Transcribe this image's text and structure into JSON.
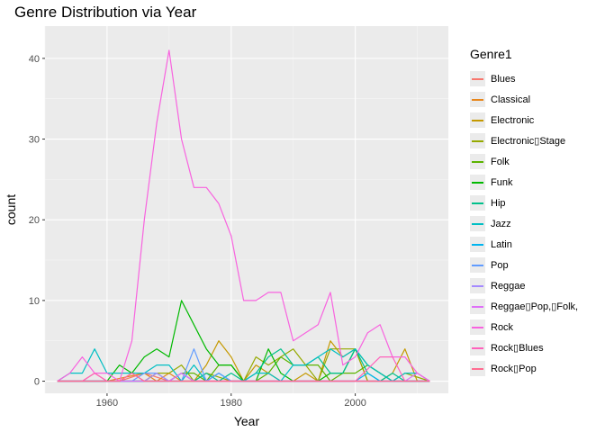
{
  "chart_data": {
    "type": "line",
    "title": "Genre Distribution via Year",
    "xlabel": "Year",
    "ylabel": "count",
    "xlim": [
      1950,
      2015
    ],
    "ylim": [
      -1.5,
      44
    ],
    "xticks": [
      1960,
      1980,
      2000
    ],
    "yticks": [
      0,
      10,
      20,
      30,
      40
    ],
    "grid": true,
    "legend_title": "Genre1",
    "legend_position": "right",
    "series": [
      {
        "name": "Blues",
        "color": "#F8766D",
        "x": [
          1952,
          1956,
          1958,
          1960,
          1962,
          1966,
          1970,
          1974,
          1980,
          1990,
          2000,
          2012
        ],
        "y": [
          0,
          0,
          1,
          0,
          0,
          1,
          0,
          0,
          0,
          0,
          0,
          0
        ]
      },
      {
        "name": "Classical",
        "color": "#E7861B",
        "x": [
          1952,
          1960,
          1966,
          1968,
          1970,
          1972,
          1980,
          1990,
          2000,
          2012
        ],
        "y": [
          0,
          0,
          1,
          0,
          1,
          0,
          0,
          0,
          0,
          0
        ]
      },
      {
        "name": "Electronic",
        "color": "#C59900",
        "x": [
          1952,
          1966,
          1968,
          1970,
          1972,
          1974,
          1976,
          1978,
          1980,
          1982,
          1984,
          1986,
          1988,
          1990,
          1992,
          1994,
          1996,
          1998,
          2000,
          2002,
          2004,
          2006,
          2008,
          2010,
          2012
        ],
        "y": [
          0,
          0,
          1,
          0,
          1,
          0,
          2,
          5,
          3,
          0,
          2,
          1,
          0,
          0,
          1,
          0,
          5,
          3,
          4,
          0,
          0,
          1,
          4,
          0,
          0
        ]
      },
      {
        "name": "Electronic▯Stage",
        "color": "#95A900",
        "x": [
          1952,
          1966,
          1968,
          1970,
          1972,
          1974,
          1976,
          1980,
          1982,
          1984,
          1986,
          1988,
          1990,
          1992,
          1994,
          1996,
          1998,
          2000,
          2002,
          2004,
          2006,
          2008,
          2012
        ],
        "y": [
          0,
          0,
          1,
          1,
          2,
          0,
          1,
          0,
          0,
          3,
          2,
          3,
          4,
          2,
          0,
          4,
          4,
          4,
          0,
          0,
          0,
          1,
          0
        ]
      },
      {
        "name": "Folk",
        "color": "#5BB300",
        "x": [
          1952,
          1970,
          1972,
          1974,
          1976,
          1978,
          1980,
          1982,
          1984,
          1986,
          1988,
          1990,
          1992,
          1994,
          1996,
          1998,
          2000,
          2002,
          2004,
          2006,
          2008,
          2012
        ],
        "y": [
          0,
          0,
          1,
          1,
          0,
          2,
          2,
          0,
          0,
          1,
          3,
          2,
          2,
          2,
          0,
          1,
          1,
          2,
          1,
          0,
          0,
          0
        ]
      },
      {
        "name": "Funk",
        "color": "#00B900",
        "x": [
          1952,
          1960,
          1962,
          1964,
          1966,
          1968,
          1970,
          1972,
          1974,
          1976,
          1978,
          1980,
          1982,
          1984,
          1986,
          1988,
          1990,
          1992,
          1994,
          1996,
          1998,
          2000,
          2002,
          2004,
          2006,
          2008,
          2012
        ],
        "y": [
          0,
          0,
          2,
          1,
          3,
          4,
          3,
          10,
          7,
          4,
          2,
          2,
          0,
          0,
          4,
          1,
          0,
          0,
          0,
          1,
          1,
          4,
          2,
          1,
          0,
          0,
          0
        ]
      },
      {
        "name": "Hip",
        "color": "#00C08B",
        "x": [
          1952,
          1970,
          1974,
          1976,
          1978,
          1980,
          1982,
          1984,
          1986,
          1988,
          1990,
          1992,
          1994,
          1996,
          1998,
          2000,
          2002,
          2004,
          2006,
          2008,
          2010,
          2012
        ],
        "y": [
          0,
          0,
          0,
          1,
          0,
          1,
          0,
          1,
          3,
          4,
          2,
          2,
          3,
          1,
          1,
          4,
          1,
          0,
          1,
          0,
          0,
          0
        ]
      },
      {
        "name": "Jazz",
        "color": "#00BFC4",
        "x": [
          1952,
          1954,
          1956,
          1958,
          1960,
          1962,
          1964,
          1966,
          1968,
          1970,
          1972,
          1974,
          1976,
          1978,
          1980,
          1982,
          1984,
          1986,
          1988,
          1990,
          1992,
          1994,
          1996,
          1998,
          2000,
          2002,
          2004,
          2006,
          2008,
          2010,
          2012
        ],
        "y": [
          0,
          1,
          1,
          4,
          1,
          1,
          1,
          1,
          2,
          2,
          0,
          2,
          0,
          1,
          0,
          0,
          1,
          1,
          0,
          2,
          2,
          3,
          4,
          3,
          4,
          2,
          1,
          0,
          1,
          1,
          0
        ]
      },
      {
        "name": "Latin",
        "color": "#00B4EF",
        "x": [
          1952,
          1970,
          1972,
          1974,
          1976,
          1978,
          1980,
          2000,
          2002,
          2004,
          2012
        ],
        "y": [
          0,
          0,
          1,
          0,
          0,
          1,
          0,
          0,
          1,
          0,
          0
        ]
      },
      {
        "name": "Pop",
        "color": "#619CFF",
        "x": [
          1952,
          1964,
          1966,
          1968,
          1970,
          1972,
          1974,
          1976,
          1978,
          1980,
          1990,
          2000,
          2012
        ],
        "y": [
          0,
          0,
          1,
          1,
          0,
          0,
          4,
          0,
          1,
          0,
          0,
          0,
          0
        ]
      },
      {
        "name": "Reggae",
        "color": "#A58AFF",
        "x": [
          1952,
          1960,
          1962,
          1964,
          1966,
          1968,
          1970,
          1972,
          1974,
          1980,
          1990,
          2000,
          2012
        ],
        "y": [
          0,
          0,
          0,
          0,
          0,
          1,
          0,
          1,
          0,
          0,
          0,
          0,
          0
        ]
      },
      {
        "name": "Reggae▯Pop,▯Folk,",
        "color": "#DF70F8",
        "x": [
          1952,
          1970,
          1972,
          1974,
          1980,
          2008,
          2010,
          2012
        ],
        "y": [
          0,
          0,
          1,
          0,
          0,
          0,
          1,
          0
        ]
      },
      {
        "name": "Rock",
        "color": "#F863DF",
        "x": [
          1952,
          1954,
          1956,
          1958,
          1960,
          1962,
          1964,
          1966,
          1968,
          1970,
          1972,
          1974,
          1976,
          1978,
          1980,
          1982,
          1984,
          1986,
          1988,
          1990,
          1992,
          1994,
          1996,
          1998,
          2000,
          2002,
          2004,
          2006,
          2008,
          2010,
          2012
        ],
        "y": [
          0,
          1,
          3,
          1,
          1,
          0,
          5,
          20,
          32,
          41,
          30,
          24,
          24,
          22,
          18,
          10,
          10,
          11,
          11,
          5,
          6,
          7,
          11,
          2,
          3,
          6,
          7,
          3,
          3,
          1,
          0
        ]
      },
      {
        "name": "Rock▯Blues",
        "color": "#FF62BC",
        "x": [
          1952,
          1956,
          1958,
          1960,
          1962,
          1964,
          1966,
          1970,
          1980,
          1990,
          2000,
          2004,
          2006,
          2008,
          2012
        ],
        "y": [
          0,
          0,
          1,
          0,
          0,
          1,
          0,
          0,
          0,
          0,
          0,
          3,
          3,
          0,
          0
        ]
      },
      {
        "name": "Rock▯Pop",
        "color": "#FF6C91",
        "x": [
          1952,
          1962,
          1964,
          1966,
          1970,
          1980,
          1990,
          2000,
          2012
        ],
        "y": [
          0,
          0,
          1,
          0,
          0,
          0,
          0,
          0,
          0
        ]
      }
    ]
  }
}
